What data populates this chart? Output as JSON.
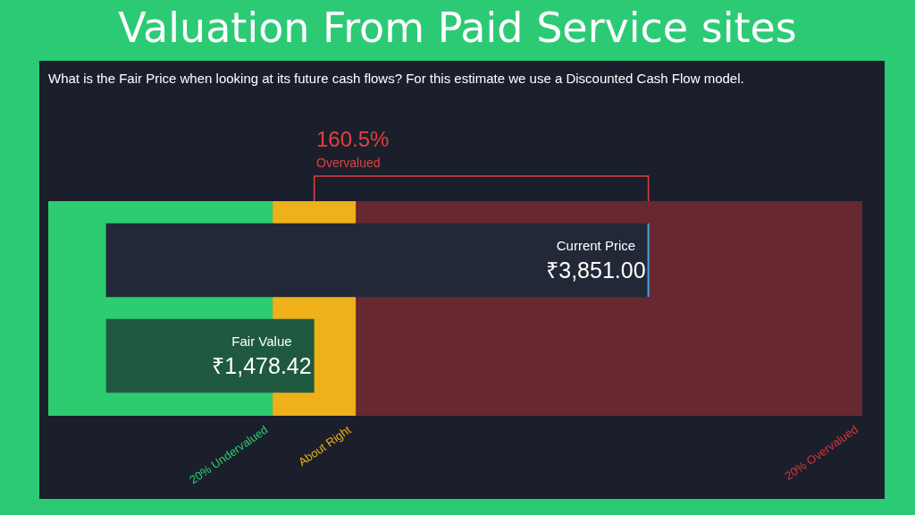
{
  "chart_data": {
    "type": "bar",
    "orientation": "horizontal",
    "title": "Valuation From Paid Service sites",
    "subtitle": "What is the Fair Price when looking at its future cash flows? For this estimate we use a Discounted Cash Flow model.",
    "categories": [
      "Current Price",
      "Fair Value"
    ],
    "values": [
      3851,
      1478.42
    ],
    "colors": [
      "#222838",
      "#1f5a40"
    ],
    "value_labels": [
      "₹3,851.00",
      "₹1,478.42"
    ],
    "xlim": [
      -410,
      5370
    ],
    "tick_labels": false,
    "grid": false,
    "legend": false,
    "bands": [
      {
        "axis": "x",
        "from": -410,
        "to": 1183,
        "label": "20% Undervalued",
        "color": "#2ecc71"
      },
      {
        "axis": "x",
        "from": 1183,
        "to": 1774,
        "label": "About Right",
        "color": "#eeb11a"
      },
      {
        "axis": "x",
        "from": 1774,
        "to": 5370,
        "label": "20% Overvalued",
        "color": "#d9363e"
      }
    ],
    "annotations": [
      "160.5%",
      "Overvalued"
    ]
  }
}
